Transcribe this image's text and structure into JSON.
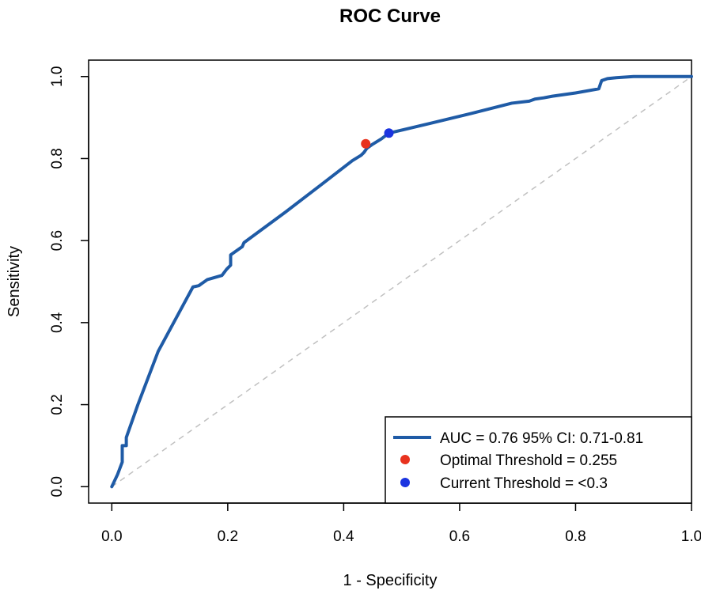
{
  "chart_data": {
    "type": "line",
    "title": "ROC Curve",
    "xlabel": "1 - Specificity",
    "ylabel": "Sensitivity",
    "xlim": [
      -0.04,
      1.0
    ],
    "ylim": [
      -0.04,
      1.04
    ],
    "x_ticks": [
      0.0,
      0.2,
      0.4,
      0.6,
      0.8,
      1.0
    ],
    "x_tick_labels": [
      "0.0",
      "0.2",
      "0.4",
      "0.6",
      "0.8",
      "1.0"
    ],
    "y_ticks": [
      0.0,
      0.2,
      0.4,
      0.6,
      0.8,
      1.0
    ],
    "y_tick_labels": [
      "0.0",
      "0.2",
      "0.4",
      "0.6",
      "0.8",
      "1.0"
    ],
    "grid": false,
    "legend_position": "bottom-right",
    "series": [
      {
        "name": "AUC = 0.76 95% CI: 0.71-0.81",
        "color": "#1f5ba6",
        "x": [
          0.0,
          0.01,
          0.018,
          0.018,
          0.025,
          0.025,
          0.045,
          0.08,
          0.14,
          0.15,
          0.165,
          0.19,
          0.198,
          0.205,
          0.205,
          0.225,
          0.228,
          0.3,
          0.36,
          0.415,
          0.43,
          0.435,
          0.44,
          0.45,
          0.465,
          0.478,
          0.55,
          0.62,
          0.69,
          0.72,
          0.73,
          0.745,
          0.76,
          0.8,
          0.84,
          0.845,
          0.855,
          0.87,
          0.9,
          0.95,
          0.975,
          0.985,
          1.0
        ],
        "y": [
          0.0,
          0.03,
          0.06,
          0.1,
          0.1,
          0.12,
          0.2,
          0.33,
          0.487,
          0.49,
          0.505,
          0.515,
          0.53,
          0.54,
          0.565,
          0.585,
          0.595,
          0.67,
          0.735,
          0.795,
          0.808,
          0.815,
          0.825,
          0.835,
          0.848,
          0.862,
          0.886,
          0.91,
          0.935,
          0.94,
          0.945,
          0.948,
          0.952,
          0.96,
          0.97,
          0.99,
          0.995,
          0.997,
          1.0,
          1.0,
          1.0,
          1.0,
          1.0
        ]
      }
    ],
    "reference_line": {
      "x": [
        0.0,
        1.0
      ],
      "y": [
        0.0,
        1.0
      ],
      "color": "#c0c0c0",
      "style": "dashed"
    },
    "points": [
      {
        "name": "Optimal Threshold = 0.255",
        "x": 0.438,
        "y": 0.836,
        "color": "#e8321e"
      },
      {
        "name": "Current Threshold = <0.3",
        "x": 0.478,
        "y": 0.862,
        "color": "#1b34e0"
      }
    ],
    "legend": [
      {
        "label": "AUC = 0.76 95% CI: 0.71-0.81",
        "kind": "line",
        "color": "#1f5ba6"
      },
      {
        "label": "Optimal Threshold = 0.255",
        "kind": "point",
        "color": "#e8321e"
      },
      {
        "label": "Current Threshold = <0.3",
        "kind": "point",
        "color": "#1b34e0"
      }
    ]
  }
}
